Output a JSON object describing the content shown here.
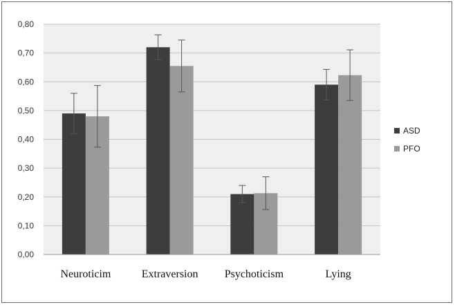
{
  "chart_data": {
    "type": "bar",
    "title": "",
    "xlabel": "",
    "ylabel": "",
    "categories": [
      "Neuroticim",
      "Extraversion",
      "Psychoticism",
      "Lying"
    ],
    "series": [
      {
        "name": "ASD",
        "color": "#3d3d3d",
        "values": [
          0.49,
          0.72,
          0.21,
          0.59
        ],
        "error": [
          0.07,
          0.043,
          0.03,
          0.053
        ]
      },
      {
        "name": "PFO",
        "color": "#9a9a9a",
        "values": [
          0.48,
          0.655,
          0.213,
          0.623
        ],
        "error": [
          0.107,
          0.09,
          0.057,
          0.088
        ]
      }
    ],
    "ylim": [
      0,
      0.8
    ],
    "yticks": [
      "0,00",
      "0,10",
      "0,20",
      "0,30",
      "0,40",
      "0,50",
      "0,60",
      "0,70",
      "0,80"
    ],
    "grid": true,
    "legend_position": "right"
  }
}
